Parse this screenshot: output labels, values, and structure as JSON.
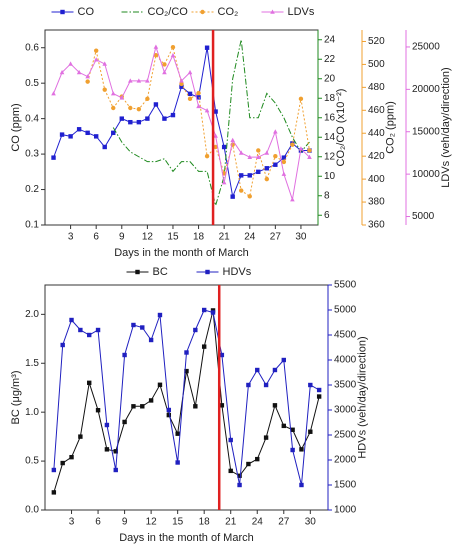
{
  "chart_data": [
    {
      "type": "line",
      "legend": "top",
      "xlabel": "Days in the month of March",
      "ylabel": "CO (ppm)",
      "y2label": "CO₂/CO (x10⁻²)",
      "y3label": "CO₂ (ppm)",
      "y4label": "LDVs (veh/day/direction)",
      "xlim": [
        0,
        32
      ],
      "xticks": [
        3,
        6,
        9,
        12,
        15,
        18,
        21,
        24,
        27,
        30
      ],
      "ylim": [
        0.1,
        0.65
      ],
      "yticks": [
        0.1,
        0.2,
        0.3,
        0.4,
        0.5,
        0.6
      ],
      "y2lim": [
        5,
        25
      ],
      "y2ticks": [
        6,
        8,
        10,
        12,
        14,
        16,
        18,
        20,
        22,
        24
      ],
      "y3lim": [
        360,
        530
      ],
      "y3ticks": [
        360,
        380,
        400,
        420,
        440,
        460,
        480,
        500,
        520
      ],
      "y4lim": [
        4000,
        27000
      ],
      "y4ticks": [
        5000,
        10000,
        15000,
        20000,
        25000
      ],
      "vline": {
        "x": 19.7,
        "color": "#e02020"
      },
      "x": [
        1,
        2,
        3,
        4,
        5,
        6,
        7,
        8,
        9,
        10,
        11,
        12,
        13,
        14,
        15,
        16,
        17,
        18,
        19,
        20,
        21,
        22,
        23,
        24,
        25,
        26,
        27,
        28,
        29,
        30,
        31
      ],
      "series": [
        {
          "name": "CO",
          "color": "#2020d0",
          "axis": "y",
          "marker": "square",
          "dash": "solid",
          "values": [
            0.29,
            0.355,
            0.35,
            0.37,
            0.36,
            0.35,
            0.32,
            0.36,
            0.4,
            0.39,
            0.39,
            0.4,
            0.44,
            0.4,
            0.41,
            0.49,
            0.47,
            0.46,
            0.6,
            0.42,
            0.32,
            0.18,
            0.24,
            0.24,
            0.25,
            0.26,
            0.27,
            0.29,
            0.33,
            0.31,
            0.31
          ]
        },
        {
          "name": "CO₂/CO",
          "color": "#1f8a1f",
          "axis": "y2",
          "marker": "none",
          "dash": "dashdot",
          "values": [
            null,
            null,
            null,
            null,
            null,
            null,
            null,
            15,
            13.5,
            12.5,
            12,
            11.5,
            11.5,
            11.8,
            10.5,
            11.5,
            11.5,
            10.5,
            10.5,
            7,
            10,
            20,
            24,
            16,
            16,
            18.5,
            17.5,
            16,
            14,
            12.5,
            13.5
          ]
        },
        {
          "name": "CO₂",
          "color": "#f0a030",
          "axis": "y3",
          "marker": "circle",
          "dash": "dotted",
          "values": [
            null,
            null,
            null,
            null,
            485,
            512,
            478,
            462,
            472,
            462,
            461,
            470,
            508,
            500,
            515,
            483,
            470,
            475,
            420,
            428,
            405,
            430,
            390,
            385,
            425,
            400,
            420,
            415,
            430,
            470,
            425
          ]
        },
        {
          "name": "LDVs",
          "color": "#e070e0",
          "axis": "y4",
          "marker": "triangle",
          "dash": "solid",
          "values": [
            19500,
            22000,
            23000,
            22000,
            21500,
            23500,
            23000,
            19500,
            19000,
            21000,
            21000,
            21000,
            25000,
            22000,
            24000,
            21000,
            22000,
            18000,
            17500,
            14500,
            9000,
            14000,
            12500,
            12000,
            12000,
            12500,
            15000,
            10000,
            7000,
            13000,
            12000
          ]
        }
      ]
    },
    {
      "type": "line",
      "legend": "top",
      "xlabel": "Days in the month of March",
      "ylabel": "BC (μg/m³)",
      "y2label": "HDVs (veh/day/direction)",
      "xlim": [
        0,
        32
      ],
      "xticks": [
        3,
        6,
        9,
        12,
        15,
        18,
        21,
        24,
        27,
        30
      ],
      "ylim": [
        0,
        2.3
      ],
      "yticks": [
        {
          "value": 0,
          "label": "0.0"
        },
        0.5,
        {
          "value": 1,
          "label": "1.0"
        },
        1.5,
        {
          "value": 2,
          "label": "2.0"
        }
      ],
      "y2lim": [
        1000,
        5500
      ],
      "y2ticks": [
        1000,
        1500,
        2000,
        2500,
        3000,
        3500,
        4000,
        4500,
        5000,
        5500
      ],
      "vline": {
        "x": 19.7,
        "color": "#e02020"
      },
      "x": [
        1,
        2,
        3,
        4,
        5,
        6,
        7,
        8,
        9,
        10,
        11,
        12,
        13,
        14,
        15,
        16,
        17,
        18,
        19,
        20,
        21,
        22,
        23,
        24,
        25,
        26,
        27,
        28,
        29,
        30,
        31
      ],
      "series": [
        {
          "name": "BC",
          "color": "#111111",
          "axis": "y",
          "marker": "square",
          "dash": "solid",
          "values": [
            0.18,
            0.48,
            0.54,
            0.75,
            1.3,
            1.02,
            0.62,
            0.6,
            0.9,
            1.06,
            1.06,
            1.12,
            1.28,
            0.97,
            0.78,
            1.42,
            1.06,
            1.67,
            2.04,
            1.07,
            0.4,
            0.35,
            0.47,
            0.52,
            0.74,
            1.07,
            0.86,
            0.82,
            0.62,
            0.8,
            1.16
          ]
        },
        {
          "name": "HDVs",
          "color": "#2020c0",
          "axis": "y2",
          "marker": "square",
          "dash": "solid",
          "values": [
            1800,
            4300,
            4800,
            4600,
            4500,
            4600,
            2700,
            1800,
            4100,
            4700,
            4650,
            4400,
            4900,
            3000,
            1950,
            4150,
            4600,
            5000,
            4950,
            4100,
            2400,
            1500,
            3500,
            3800,
            3500,
            3800,
            4000,
            2200,
            1500,
            3500,
            3400
          ]
        }
      ]
    }
  ]
}
